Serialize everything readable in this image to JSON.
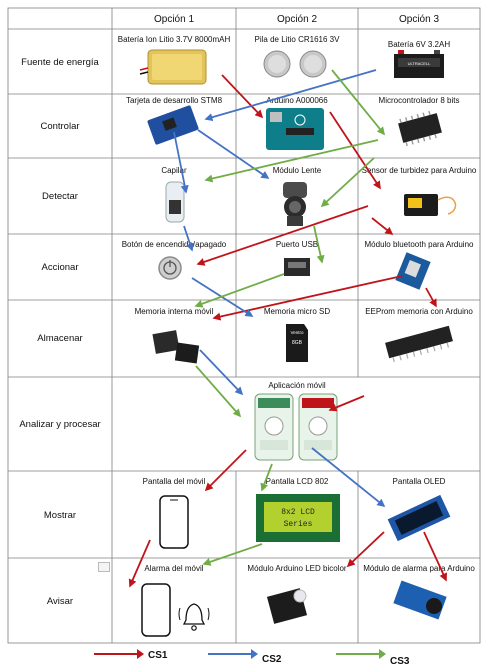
{
  "colors": {
    "cs1": "#c0141b",
    "cs2": "#4472c4",
    "cs3": "#70ad47",
    "grid": "#7f7f7f"
  },
  "table": {
    "headers": [
      "Opción 1",
      "Opción 2",
      "Opción 3"
    ],
    "rows": [
      "Fuente de energía",
      "Controlar",
      "Detectar",
      "Accionar",
      "Almacenar",
      "Analizar y procesar",
      "Mostrar",
      "Avisar"
    ],
    "cells": {
      "r0c1": "Batería Ion Litio 3.7V 8000mAH",
      "r0c2": "Pila de Litio CR1616 3V",
      "r0c3": "Batería 6V 3.2AH",
      "r1c1": "Tarjeta de desarrollo STM8",
      "r1c2": "Arduino A000066",
      "r1c3": "Microcontrolador 8 bits",
      "r2c1": "Capilar",
      "r2c2": "Módulo Lente",
      "r2c3": "Sensor de turbidez para Arduino",
      "r3c1": "Botón de encendido/apagado",
      "r3c2": "Puerto USB",
      "r3c3": "Módulo bluetooth para Arduino",
      "r4c1": "Memoria interna móvil",
      "r4c2": "Memoria micro SD",
      "r4c3": "EEProm memoria con Arduino",
      "r5": "Aplicación móvil",
      "r6c1": "Pantalla del móvil",
      "r6c2": "Pantalla LCD 802",
      "r6c3": "Pantalla OLED",
      "r7c1": "Alarma del móvil",
      "r7c2": "Módulo Arduino LED bicolor",
      "r7c3": "Módulo de alarma para Arduino"
    },
    "image_labels": {
      "lcd_line1": "8x2 LCD",
      "lcd_line2": "Series",
      "sd_brand": "Ventro",
      "sd_size": "8GB",
      "battery_brand": "ULTRACELL"
    }
  },
  "legend": [
    {
      "label": "CS1",
      "color": "#c0141b"
    },
    {
      "label": "CS2",
      "color": "#4472c4"
    },
    {
      "label": "CS3",
      "color": "#70ad47"
    }
  ]
}
